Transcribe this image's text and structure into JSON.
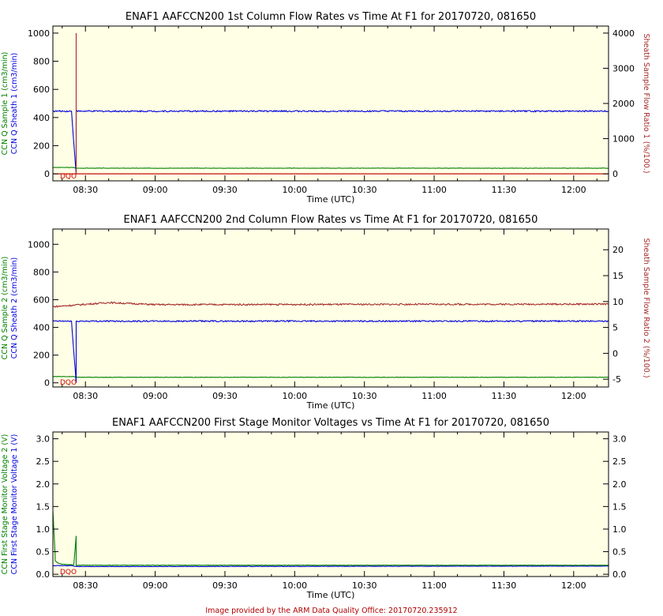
{
  "footer": "Image provided by the ARM Data Quality Office: 20170720.235912",
  "colors": {
    "background": "#ffffe6",
    "green": "#008000",
    "blue": "#0000dd",
    "brown": "#a52a2a",
    "dqo": "#cc0000"
  },
  "chart_data": [
    {
      "type": "line",
      "title": "ENAF1 AAFCCN200 1st Column Flow Rates vs Time At F1 for 20170720, 081650",
      "xlabel": "Time (UTC)",
      "xlim": [
        "08:16",
        "12:15"
      ],
      "x_ticks": [
        "08:30",
        "09:00",
        "09:30",
        "10:00",
        "10:30",
        "11:00",
        "11:30",
        "12:00"
      ],
      "ylim_left": [
        -50,
        1050
      ],
      "yticks_left": [
        0,
        200,
        400,
        600,
        800,
        1000
      ],
      "ylim_right": [
        -200,
        4200
      ],
      "yticks_right": [
        0,
        1000,
        2000,
        3000,
        4000
      ],
      "ylabels_left": [
        {
          "text": "CCN Q Sample 1 (cm3/min)",
          "color": "#008000"
        },
        {
          "text": "CCN Q Sheath 1 (cm3/min)",
          "color": "#0000dd"
        }
      ],
      "ylabel_right": {
        "text": "Sheath Sample Flow Ratio 1 (%/100.)",
        "color": "#a52a2a"
      },
      "dqo_label": "DQO",
      "series": [
        {
          "axis": "left",
          "color": "#008000",
          "noise": 1.5,
          "x": [
            "08:16",
            "08:25",
            "08:26",
            "12:14",
            "12:15"
          ],
          "y": [
            45,
            45,
            40,
            40,
            40
          ]
        },
        {
          "axis": "left",
          "color": "#0000dd",
          "noise": 5,
          "x": [
            "08:16",
            "08:24",
            "08:26",
            "08:26",
            "12:14",
            "12:15"
          ],
          "y": [
            445,
            445,
            0,
            445,
            445,
            445
          ]
        },
        {
          "axis": "right",
          "color": "#a52a2a",
          "noise": 0,
          "x": [
            "08:16",
            "08:26",
            "08:26",
            "08:26",
            "12:15"
          ],
          "y": [
            0,
            0,
            4000,
            0,
            0
          ]
        },
        {
          "axis": "left",
          "color": "#cc0000",
          "noise": 0,
          "x": [
            "08:16",
            "12:15"
          ],
          "y": [
            0,
            0
          ]
        }
      ]
    },
    {
      "type": "line",
      "title": "ENAF1 AAFCCN200 2nd Column Flow Rates vs Time At F1 for 20170720, 081650",
      "xlabel": "Time (UTC)",
      "xlim": [
        "08:16",
        "12:15"
      ],
      "x_ticks": [
        "08:30",
        "09:00",
        "09:30",
        "10:00",
        "10:30",
        "11:00",
        "11:30",
        "12:00"
      ],
      "ylim_left": [
        -30,
        1110
      ],
      "yticks_left": [
        0,
        200,
        400,
        600,
        800,
        1000
      ],
      "ylim_right": [
        -6.5,
        24
      ],
      "yticks_right": [
        -5,
        0,
        5,
        10,
        15,
        20
      ],
      "ylabels_left": [
        {
          "text": "CCN Q Sample 2 (cm3/min)",
          "color": "#008000"
        },
        {
          "text": "CCN Q Sheath 2 (cm3/min)",
          "color": "#0000dd"
        }
      ],
      "ylabel_right": {
        "text": "Sheath Sample Flow Ratio 2 (%/100.)",
        "color": "#a52a2a"
      },
      "dqo_label": "DQO",
      "series": [
        {
          "axis": "left",
          "color": "#008000",
          "noise": 1.5,
          "x": [
            "08:16",
            "08:25",
            "08:26",
            "12:14",
            "12:15"
          ],
          "y": [
            45,
            45,
            40,
            40,
            40
          ]
        },
        {
          "axis": "right",
          "color": "#a52a2a",
          "noise": 0.15,
          "x": [
            "08:16",
            "08:25",
            "08:40",
            "09:00",
            "12:15"
          ],
          "y": [
            9.0,
            9.3,
            9.8,
            9.4,
            9.5
          ]
        },
        {
          "axis": "left",
          "color": "#0000dd",
          "noise": 5,
          "x": [
            "08:16",
            "08:24",
            "08:26",
            "08:26",
            "12:14",
            "12:15"
          ],
          "y": [
            445,
            445,
            0,
            445,
            445,
            445
          ]
        }
      ]
    },
    {
      "type": "line",
      "title": "ENAF1 AAFCCN200 First Stage Monitor Voltages vs Time At F1 for 20170720, 081650",
      "xlabel": "Time (UTC)",
      "xlim": [
        "08:16",
        "12:15"
      ],
      "x_ticks": [
        "08:30",
        "09:00",
        "09:30",
        "10:00",
        "10:30",
        "11:00",
        "11:30",
        "12:00"
      ],
      "ylim_left": [
        -0.05,
        3.15
      ],
      "yticks_left": [
        "0.0",
        "0.5",
        "1.0",
        "1.5",
        "2.0",
        "2.5",
        "3.0"
      ],
      "ylim_right": [
        -0.05,
        3.15
      ],
      "yticks_right": [
        "0.0",
        "0.5",
        "1.0",
        "1.5",
        "2.0",
        "2.5",
        "3.0"
      ],
      "ylabels_left": [
        {
          "text": "CCN First Stage Monitor Voltage 2 (V)",
          "color": "#008000"
        },
        {
          "text": "CCN First Stage Monitor Voltage 1 (V)",
          "color": "#0000dd"
        }
      ],
      "dqo_label": "DQO",
      "series": [
        {
          "axis": "left",
          "color": "#0000dd",
          "noise": 0.004,
          "x": [
            "08:16",
            "08:24",
            "08:26",
            "12:15"
          ],
          "y": [
            0.19,
            0.19,
            0.17,
            0.18
          ]
        },
        {
          "axis": "left",
          "color": "#008000",
          "noise": 0.004,
          "x": [
            "08:16",
            "08:17",
            "08:17",
            "08:18",
            "08:20",
            "08:25",
            "08:26",
            "08:26",
            "08:26",
            "12:15"
          ],
          "y": [
            1.4,
            0.4,
            0.3,
            0.25,
            0.22,
            0.21,
            0.85,
            0.2,
            0.2,
            0.2
          ]
        }
      ]
    }
  ]
}
